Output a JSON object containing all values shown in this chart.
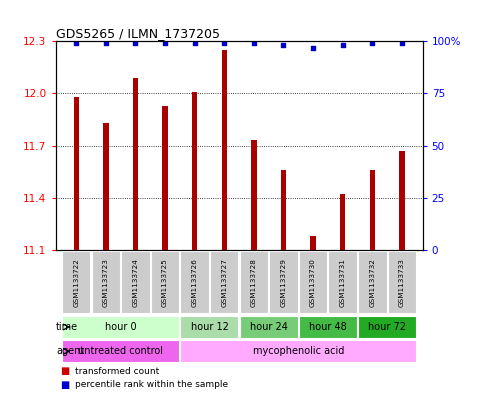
{
  "title": "GDS5265 / ILMN_1737205",
  "samples": [
    "GSM1133722",
    "GSM1133723",
    "GSM1133724",
    "GSM1133725",
    "GSM1133726",
    "GSM1133727",
    "GSM1133728",
    "GSM1133729",
    "GSM1133730",
    "GSM1133731",
    "GSM1133732",
    "GSM1133733"
  ],
  "bar_values": [
    11.98,
    11.83,
    12.09,
    11.93,
    12.01,
    12.25,
    11.73,
    11.56,
    11.18,
    11.42,
    11.56,
    11.67
  ],
  "percentile_values": [
    99,
    99,
    99,
    99,
    99,
    99,
    99,
    98,
    97,
    98,
    99,
    99
  ],
  "ymin": 11.1,
  "ymax": 12.3,
  "yticks": [
    11.1,
    11.4,
    11.7,
    12.0,
    12.3
  ],
  "right_yticks": [
    0,
    25,
    50,
    75,
    100
  ],
  "bar_color": "#aa0000",
  "dot_color": "#0000cc",
  "grid_color": "#000000",
  "time_groups": [
    {
      "label": "hour 0",
      "start": 0,
      "end": 3,
      "color": "#ccffcc"
    },
    {
      "label": "hour 12",
      "start": 4,
      "end": 5,
      "color": "#aaddaa"
    },
    {
      "label": "hour 24",
      "start": 6,
      "end": 7,
      "color": "#77cc77"
    },
    {
      "label": "hour 48",
      "start": 8,
      "end": 9,
      "color": "#44bb44"
    },
    {
      "label": "hour 72",
      "start": 10,
      "end": 11,
      "color": "#22aa22"
    }
  ],
  "agent_groups": [
    {
      "label": "untreated control",
      "start": 0,
      "end": 3,
      "color": "#ee66ee"
    },
    {
      "label": "mycophenolic acid",
      "start": 4,
      "end": 11,
      "color": "#ffaaff"
    }
  ],
  "legend_bar_color": "#cc0000",
  "legend_dot_color": "#0000cc",
  "bar_width": 0.18
}
